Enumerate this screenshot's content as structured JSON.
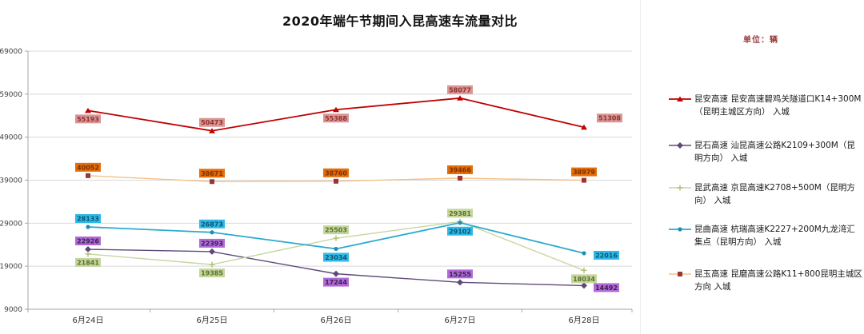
{
  "chart_data": {
    "type": "line",
    "title": "2020年端午节期间入昆高速车流量对比",
    "unit_label": "单位：辆",
    "x": [
      "6月24日",
      "6月25日",
      "6月26日",
      "6月27日",
      "6月28日"
    ],
    "ylim": [
      9000,
      69000
    ],
    "yticks": [
      69000,
      59000,
      49000,
      39000,
      29000,
      19000,
      9000
    ],
    "grid": true,
    "legend_position": "right",
    "series": [
      {
        "name": "昆安高速 昆安高速碧鸡关隧道口K14+300M（昆明主城区方向） 入城",
        "color": "#C00000",
        "marker": "triangle",
        "marker_color": "#C00000",
        "label_bg": "#D99694",
        "label_color": "#903030",
        "line_width": 1.8,
        "values": [
          55193,
          50473,
          55388,
          58077,
          51308
        ],
        "label_pos": [
          "below",
          "above",
          "below",
          "above",
          "above-right"
        ]
      },
      {
        "name": "昆石高速 汕昆高速公路K2109+300M（昆明方向） 入城",
        "color": "#5F497A",
        "marker": "diamond",
        "marker_color": "#5F497A",
        "label_bg": "#B268D9",
        "label_color": "#35254A",
        "line_width": 1.4,
        "values": [
          22926,
          22393,
          17244,
          15255,
          14492
        ],
        "label_pos": [
          "above",
          "above",
          "below",
          "above",
          "right"
        ]
      },
      {
        "name": "昆武高速 京昆高速K2708+500M（昆明方向） 入城",
        "color": "#C6D6A0",
        "marker": "cross",
        "marker_color": "#AABE78",
        "label_bg": "#C4D79B",
        "label_color": "#5B6E2E",
        "line_width": 1.4,
        "values": [
          21841,
          19385,
          25503,
          29381,
          18034
        ],
        "label_pos": [
          "below",
          "below",
          "above",
          "above",
          "below"
        ]
      },
      {
        "name": "昆曲高速 杭瑞高速K2227+200M九龙湾汇集点（昆明方向） 入城",
        "color": "#2BAAD0",
        "marker": "dot",
        "marker_color": "#1F8EB5",
        "label_bg": "#2FB9E8",
        "label_color": "#0F5370",
        "line_width": 1.8,
        "values": [
          28133,
          26873,
          23034,
          29102,
          22016
        ],
        "label_pos": [
          "above",
          "above",
          "below",
          "below",
          "right"
        ]
      },
      {
        "name": "昆玉高速 昆磨高速公路K11+800昆明主城区方向 入城",
        "color": "#F5C08A",
        "marker": "square",
        "marker_color": "#953735",
        "label_bg": "#E46D0A",
        "label_color": "#7E3000",
        "line_width": 1.4,
        "values": [
          40052,
          38671,
          38760,
          39466,
          38979
        ],
        "label_pos": [
          "above",
          "above",
          "above",
          "above",
          "above"
        ]
      }
    ]
  }
}
